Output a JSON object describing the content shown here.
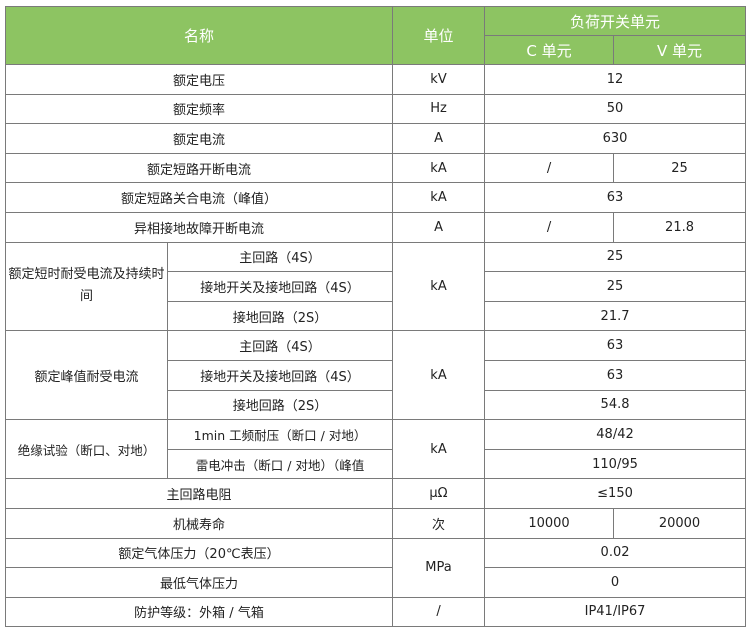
{
  "header": {
    "name": "名称",
    "unit": "单位",
    "group": "负荷开关单元",
    "c_unit": "C 单元",
    "v_unit": "V 单元"
  },
  "rows": [
    {
      "name": "额定电压",
      "unit": "kV",
      "value": "12"
    },
    {
      "name": "额定频率",
      "unit": "Hz",
      "value": "50"
    },
    {
      "name": "额定电流",
      "unit": "A",
      "value": "630"
    },
    {
      "name": "额定短路开断电流",
      "unit": "kA",
      "c": "/",
      "v": "25"
    },
    {
      "name": "额定短路关合电流（峰值）",
      "unit": "kA",
      "value": "63"
    },
    {
      "name": "异相接地故障开断电流",
      "unit": "A",
      "c": "/",
      "v": "21.8"
    }
  ],
  "short_time": {
    "name": "额定短时耐受电流及持续时间",
    "unit": "kA",
    "sub": [
      {
        "label": "主回路（4S）",
        "value": "25"
      },
      {
        "label": "接地开关及接地回路（4S）",
        "value": "25"
      },
      {
        "label": "接地回路（2S）",
        "value": "21.7"
      }
    ]
  },
  "peak": {
    "name": "额定峰值耐受电流",
    "unit": "kA",
    "sub": [
      {
        "label": "主回路（4S）",
        "value": "63"
      },
      {
        "label": "接地开关及接地回路（4S）",
        "value": "63"
      },
      {
        "label": "接地回路（2S）",
        "value": "54.8"
      }
    ]
  },
  "insulation": {
    "name": "绝缘试验（断口、对地）",
    "unit": "kA",
    "sub": [
      {
        "label": "1min 工频耐压（断口 / 对地）",
        "value": "48/42"
      },
      {
        "label": "雷电冲击（断口 / 对地）（峰值",
        "value": "110/95"
      }
    ]
  },
  "resistance": {
    "name": "主回路电阻",
    "unit": "μΩ",
    "value": "≤150"
  },
  "life": {
    "name": "机械寿命",
    "unit": "次",
    "c": "10000",
    "v": "20000"
  },
  "gas": {
    "unit": "MPa",
    "rows": [
      {
        "name": "额定气体压力（20℃表压）",
        "value": "0.02"
      },
      {
        "name": "最低气体压力",
        "value": "0"
      }
    ]
  },
  "protection": {
    "name": "防护等级：外箱 / 气箱",
    "unit": "/",
    "value": "IP41/IP67"
  }
}
